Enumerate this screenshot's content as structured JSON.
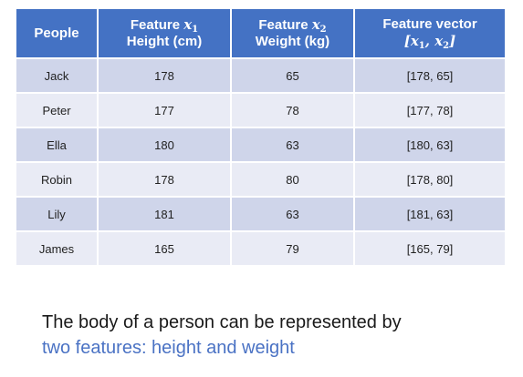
{
  "table": {
    "headers": {
      "people": "People",
      "x1_label": "Feature",
      "x1_symbol": "x",
      "x1_sub": "1",
      "x1_unit": "Height (cm)",
      "x2_label": "Feature",
      "x2_symbol": "x",
      "x2_sub": "2",
      "x2_unit": "Weight (kg)",
      "vector_label": "Feature vector",
      "vector_open": "[",
      "vector_s1": "x",
      "vector_sub1": "1",
      "vector_comma": ", ",
      "vector_s2": "x",
      "vector_sub2": "2",
      "vector_close": "]"
    },
    "rows": [
      {
        "name": "Jack",
        "height": "178",
        "weight": "65",
        "vector": "[178, 65]"
      },
      {
        "name": "Peter",
        "height": "177",
        "weight": "78",
        "vector": "[177, 78]"
      },
      {
        "name": "Ella",
        "height": "180",
        "weight": "63",
        "vector": "[180, 63]"
      },
      {
        "name": "Robin",
        "height": "178",
        "weight": "80",
        "vector": "[178, 80]"
      },
      {
        "name": "Lily",
        "height": "181",
        "weight": "63",
        "vector": "[181, 63]"
      },
      {
        "name": "James",
        "height": "165",
        "weight": "79",
        "vector": "[165, 79]"
      }
    ]
  },
  "caption": {
    "line1": "The body of a person can be represented by",
    "line2": "two features: height and weight"
  },
  "colors": {
    "header_bg": "#4472c4",
    "row_odd": "#cfd5ea",
    "row_even": "#e9ebf5",
    "caption_highlight": "#4a72c4"
  }
}
